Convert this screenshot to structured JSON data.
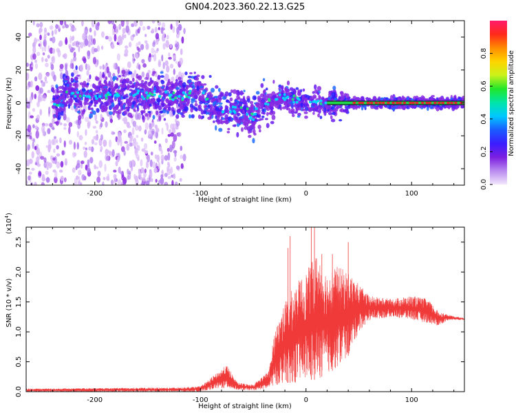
{
  "figure_title": "GN04.2023.360.22.13.G25",
  "colors": {
    "scatter_low": "#d9b8f7",
    "scatter_mid": "#8a2be2",
    "scatter_high": "#2b1dff",
    "signal_line": "#e8232a",
    "snr_line": "#f03a3a",
    "black": "#000000"
  },
  "chart_data": [
    {
      "type": "heatmap",
      "xlabel": "Height of straight line (km)",
      "ylabel": "Frequency (Hz)",
      "xlim": [
        -265,
        150
      ],
      "ylim": [
        -50,
        50
      ],
      "x_ticks": [
        -200,
        -100,
        0,
        100
      ],
      "y_ticks": [
        -40,
        -20,
        0,
        20,
        40
      ],
      "grid": false,
      "colorbar": {
        "label": "Normalized spectral amplitude",
        "range": [
          0,
          1
        ],
        "ticks": [
          0.0,
          0.2,
          0.4,
          0.6,
          0.8
        ],
        "colormap": [
          "#f2e6fb",
          "#b98af0",
          "#7b1fe0",
          "#3a1dff",
          "#1a5cff",
          "#00c8ff",
          "#00e5a8",
          "#21e62a",
          "#c9f21a",
          "#ffd400",
          "#ff8c00",
          "#ff2a1a",
          "#ff1a6a"
        ]
      },
      "ridge": [
        {
          "x": -230,
          "y": 6
        },
        {
          "x": -200,
          "y": 5
        },
        {
          "x": -160,
          "y": 5
        },
        {
          "x": -120,
          "y": 4
        },
        {
          "x": -100,
          "y": 6
        },
        {
          "x": -85,
          "y": -3
        },
        {
          "x": -75,
          "y": -5
        },
        {
          "x": -60,
          "y": -3
        },
        {
          "x": -50,
          "y": -9
        },
        {
          "x": -40,
          "y": 1
        },
        {
          "x": -20,
          "y": 3
        },
        {
          "x": 0,
          "y": 1
        },
        {
          "x": 20,
          "y": 0
        },
        {
          "x": 40,
          "y": 0
        },
        {
          "x": 80,
          "y": 0
        },
        {
          "x": 120,
          "y": 0
        },
        {
          "x": 150,
          "y": 0
        }
      ]
    },
    {
      "type": "line",
      "xlabel": "Height of straight line (km)",
      "ylabel": "SNR (10 * v/v)",
      "y_multiplier": "(x10",
      "y_multiplier_exp": "4",
      "y_multiplier_close": ")",
      "xlim": [
        -265,
        150
      ],
      "ylim": [
        0,
        2.75
      ],
      "x_ticks": [
        -200,
        -100,
        0,
        100
      ],
      "y_ticks": [
        0.0,
        0.5,
        1.0,
        1.5,
        2.0,
        2.5
      ],
      "y_tick_labels": [
        "0.0",
        "0.5",
        "1.0",
        "1.5",
        "2.0",
        "2.5"
      ],
      "grid": false,
      "series": [
        {
          "envelope": [
            {
              "x": -265,
              "lo": 0.0,
              "hi": 0.05
            },
            {
              "x": -200,
              "lo": 0.0,
              "hi": 0.06
            },
            {
              "x": -120,
              "lo": 0.0,
              "hi": 0.07
            },
            {
              "x": -100,
              "lo": 0.0,
              "hi": 0.09
            },
            {
              "x": -85,
              "lo": 0.05,
              "hi": 0.3
            },
            {
              "x": -75,
              "lo": 0.05,
              "hi": 0.45
            },
            {
              "x": -65,
              "lo": 0.03,
              "hi": 0.15
            },
            {
              "x": -50,
              "lo": 0.02,
              "hi": 0.12
            },
            {
              "x": -35,
              "lo": 0.05,
              "hi": 0.35
            },
            {
              "x": -30,
              "lo": 0.1,
              "hi": 1.0
            },
            {
              "x": -20,
              "lo": 0.15,
              "hi": 1.5
            },
            {
              "x": -10,
              "lo": 0.15,
              "hi": 1.8
            },
            {
              "x": 0,
              "lo": 0.2,
              "hi": 2.0
            },
            {
              "x": 10,
              "lo": 0.2,
              "hi": 2.3
            },
            {
              "x": 20,
              "lo": 0.3,
              "hi": 2.0
            },
            {
              "x": 30,
              "lo": 0.4,
              "hi": 2.1
            },
            {
              "x": 40,
              "lo": 0.6,
              "hi": 2.0
            },
            {
              "x": 50,
              "lo": 1.0,
              "hi": 1.8
            },
            {
              "x": 60,
              "lo": 1.2,
              "hi": 1.6
            },
            {
              "x": 80,
              "lo": 1.25,
              "hi": 1.55
            },
            {
              "x": 100,
              "lo": 1.2,
              "hi": 1.6
            },
            {
              "x": 115,
              "lo": 1.15,
              "hi": 1.55
            },
            {
              "x": 125,
              "lo": 1.1,
              "hi": 1.35
            },
            {
              "x": 135,
              "lo": 1.2,
              "hi": 1.28
            },
            {
              "x": 150,
              "lo": 1.2,
              "hi": 1.23
            }
          ],
          "spikes": [
            {
              "x": -17,
              "y": 2.4
            },
            {
              "x": -15,
              "y": 2.6
            },
            {
              "x": 5,
              "y": 2.75
            },
            {
              "x": 8,
              "y": 2.75
            },
            {
              "x": 15,
              "y": 2.3
            },
            {
              "x": 25,
              "y": 2.3
            },
            {
              "x": 40,
              "y": 2.5
            }
          ]
        }
      ]
    }
  ]
}
